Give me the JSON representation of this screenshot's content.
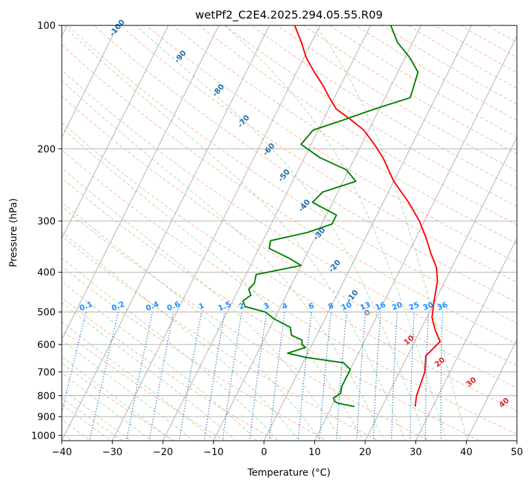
{
  "chart_data": {
    "type": "line",
    "title": "wetPf2_C2E4.2025.294.05.55.R09",
    "xlabel": "Temperature (°C)",
    "ylabel": "Pressure (hPa)",
    "xlim": [
      -40,
      50
    ],
    "ylim": [
      1030,
      100
    ],
    "y_scale": "log",
    "grid": true,
    "x_ticks": [
      -40,
      -30,
      -20,
      -10,
      0,
      10,
      20,
      30,
      40,
      50
    ],
    "x_tick_labels": [
      "−40",
      "−30",
      "−20",
      "−10",
      "0",
      "10",
      "20",
      "30",
      "40",
      "50"
    ],
    "y_ticks": [
      100,
      200,
      300,
      400,
      500,
      600,
      700,
      800,
      900,
      1000
    ],
    "y_tick_labels": [
      "100",
      "200",
      "300",
      "400",
      "500",
      "600",
      "700",
      "800",
      "900",
      "1000"
    ],
    "series": [
      {
        "color": "#ff0000",
        "points": [
          [
            850,
            26.5
          ],
          [
            800,
            25.7
          ],
          [
            740,
            25.3
          ],
          [
            700,
            25.0
          ],
          [
            665,
            24.2
          ],
          [
            640,
            23.6
          ],
          [
            615,
            24.3
          ],
          [
            590,
            25.0
          ],
          [
            555,
            23.0
          ],
          [
            515,
            21.0
          ],
          [
            470,
            19.8
          ],
          [
            420,
            18.5
          ],
          [
            390,
            17.0
          ],
          [
            360,
            14.5
          ],
          [
            330,
            12.0
          ],
          [
            300,
            9.0
          ],
          [
            270,
            5.0
          ],
          [
            240,
            0.0
          ],
          [
            210,
            -4.5
          ],
          [
            195,
            -7.5
          ],
          [
            180,
            -11.0
          ],
          [
            170,
            -14.5
          ],
          [
            160,
            -18.5
          ],
          [
            150,
            -21.0
          ],
          [
            140,
            -23.5
          ],
          [
            130,
            -26.5
          ],
          [
            120,
            -29.5
          ],
          [
            110,
            -32.0
          ],
          [
            100,
            -35.0
          ]
        ]
      },
      {
        "color": "#008000",
        "points": [
          [
            850,
            14.5
          ],
          [
            835,
            11.0
          ],
          [
            825,
            10.0
          ],
          [
            810,
            9.5
          ],
          [
            790,
            10.5
          ],
          [
            760,
            10.0
          ],
          [
            720,
            10.0
          ],
          [
            690,
            10.0
          ],
          [
            665,
            8.0
          ],
          [
            645,
            0.0
          ],
          [
            630,
            -4.0
          ],
          [
            610,
            -1.0
          ],
          [
            600,
            -2.0
          ],
          [
            585,
            -2.5
          ],
          [
            570,
            -5.0
          ],
          [
            545,
            -6.0
          ],
          [
            520,
            -10.0
          ],
          [
            500,
            -12.5
          ],
          [
            485,
            -17.0
          ],
          [
            470,
            -18.0
          ],
          [
            455,
            -17.0
          ],
          [
            440,
            -18.0
          ],
          [
            425,
            -17.5
          ],
          [
            405,
            -18.0
          ],
          [
            395,
            -14.0
          ],
          [
            385,
            -10.0
          ],
          [
            370,
            -13.0
          ],
          [
            350,
            -18.0
          ],
          [
            335,
            -18.5
          ],
          [
            320,
            -12.0
          ],
          [
            305,
            -8.0
          ],
          [
            290,
            -8.0
          ],
          [
            270,
            -14.0
          ],
          [
            255,
            -13.0
          ],
          [
            240,
            -7.5
          ],
          [
            225,
            -10.5
          ],
          [
            210,
            -17.0
          ],
          [
            195,
            -22.0
          ],
          [
            180,
            -21.0
          ],
          [
            170,
            -16.0
          ],
          [
            160,
            -11.0
          ],
          [
            150,
            -5.0
          ],
          [
            130,
            -6.0
          ],
          [
            120,
            -9.0
          ],
          [
            110,
            -13.0
          ],
          [
            100,
            -16.0
          ]
        ]
      }
    ],
    "dry_adiabat_labels": [
      "-100",
      "-90",
      "-80",
      "-70",
      "-60",
      "-50",
      "-40",
      "-30",
      "-20",
      "-10",
      "0"
    ],
    "moist_adiabat_labels": [
      "10",
      "20",
      "30",
      "40"
    ],
    "mixing_ratio_labels": [
      "0.1",
      "0.2",
      "0.4",
      "0.6",
      "1",
      "1.5",
      "2",
      "3",
      "4",
      "6",
      "8",
      "10",
      "13",
      "16",
      "20",
      "25",
      "30",
      "36"
    ]
  }
}
